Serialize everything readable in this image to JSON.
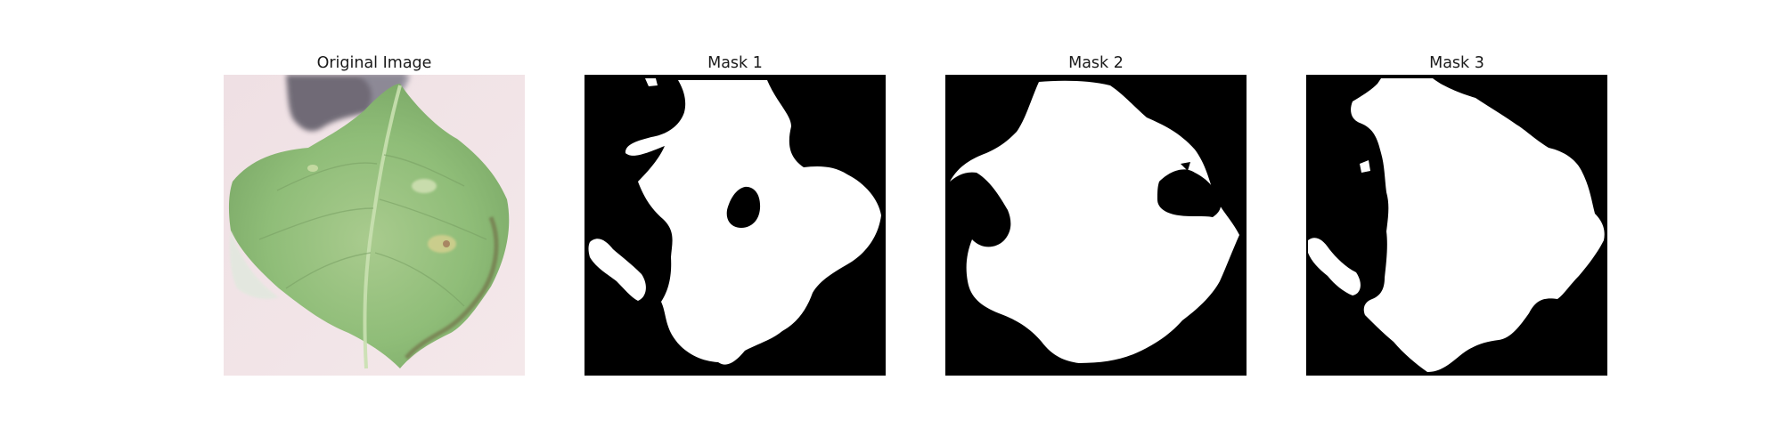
{
  "figure": {
    "panels": [
      {
        "title": "Original Image"
      },
      {
        "title": "Mask 1"
      },
      {
        "title": "Mask 2"
      },
      {
        "title": "Mask 3"
      }
    ]
  },
  "colors": {
    "leaf_light": "#b6d09a",
    "leaf_mid": "#8fbd78",
    "leaf_dark": "#6f9d5c",
    "background_paper": "#f1e3e6",
    "shadow": "#4a4654",
    "mask_foreground": "#ffffff",
    "mask_background": "#000000"
  }
}
